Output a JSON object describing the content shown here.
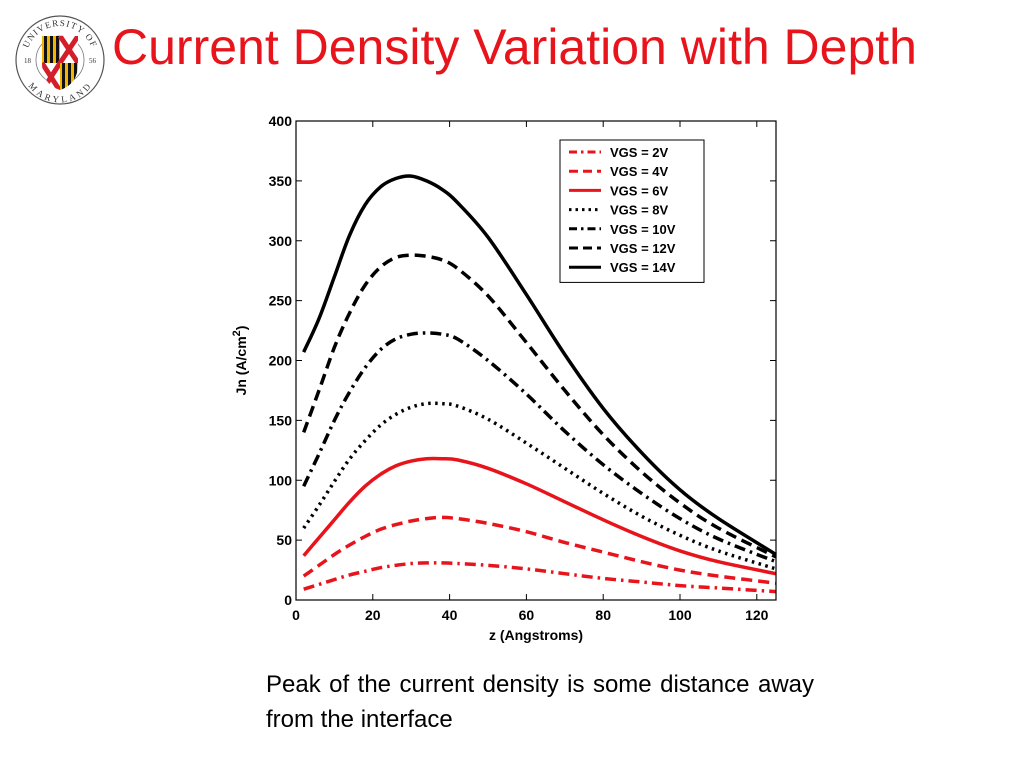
{
  "title": "Current Density Variation with Depth",
  "logo": {
    "ring_top": "UNIVERSITY OF",
    "ring_bottom": "MARYLAND",
    "year_left": "18",
    "year_right": "56"
  },
  "caption": "Peak of the current density is some distance away from the interface",
  "colors": {
    "title": "#e8141c",
    "red_series": "#e8141c",
    "black_series": "#000000"
  },
  "chart_data": {
    "type": "line",
    "title": "",
    "xlabel": "z (Angstroms)",
    "ylabel": "Jn (A/cm",
    "ylabel_superscript": "2",
    "ylabel_close": ")",
    "xlim": [
      0,
      125
    ],
    "ylim": [
      0,
      400
    ],
    "xticks": [
      0,
      20,
      40,
      60,
      80,
      100,
      120
    ],
    "yticks": [
      0,
      50,
      100,
      150,
      200,
      250,
      300,
      350,
      400
    ],
    "grid": false,
    "legend_position": "top-right",
    "x": [
      2,
      6,
      10,
      14,
      18,
      22,
      26,
      30,
      34,
      38,
      42,
      50,
      60,
      70,
      80,
      90,
      100,
      110,
      125
    ],
    "series": [
      {
        "name": "VGS = 2V",
        "color": "#e8141c",
        "dash": "dashdot",
        "values": [
          9,
          13,
          17,
          21,
          24,
          27,
          29,
          30.5,
          31,
          31,
          30.5,
          29,
          26,
          22,
          18,
          15,
          12,
          10,
          7
        ]
      },
      {
        "name": "VGS = 4V",
        "color": "#e8141c",
        "dash": "dashed",
        "values": [
          20,
          29,
          38,
          46,
          53,
          59,
          63,
          66,
          68,
          69,
          68,
          64,
          57,
          48,
          40,
          32,
          25,
          20,
          14
        ]
      },
      {
        "name": "VGS = 6V",
        "color": "#e8141c",
        "dash": "solid",
        "values": [
          37,
          52,
          67,
          82,
          95,
          105,
          112,
          116,
          118,
          118,
          117,
          110,
          97,
          82,
          67,
          53,
          41,
          32,
          22
        ]
      },
      {
        "name": "VGS = 8V",
        "color": "#000000",
        "dash": "dotted",
        "values": [
          60,
          79,
          99,
          118,
          133,
          146,
          155,
          161,
          164,
          164,
          162,
          151,
          131,
          110,
          89,
          70,
          54,
          41,
          26
        ]
      },
      {
        "name": "VGS = 10V",
        "color": "#000000",
        "dash": "dashdot",
        "values": [
          95,
          122,
          150,
          174,
          194,
          209,
          218,
          222,
          223,
          222,
          218,
          200,
          172,
          141,
          113,
          89,
          68,
          51,
          32
        ]
      },
      {
        "name": "VGS = 12V",
        "color": "#000000",
        "dash": "dashed",
        "values": [
          140,
          175,
          211,
          240,
          263,
          278,
          286,
          288,
          287,
          284,
          277,
          254,
          215,
          175,
          138,
          107,
          81,
          60,
          36
        ]
      },
      {
        "name": "VGS = 14V",
        "color": "#000000",
        "dash": "solid",
        "values": [
          207,
          235,
          270,
          305,
          330,
          345,
          352,
          354,
          350,
          343,
          332,
          303,
          255,
          205,
          160,
          123,
          92,
          68,
          38
        ]
      }
    ]
  }
}
